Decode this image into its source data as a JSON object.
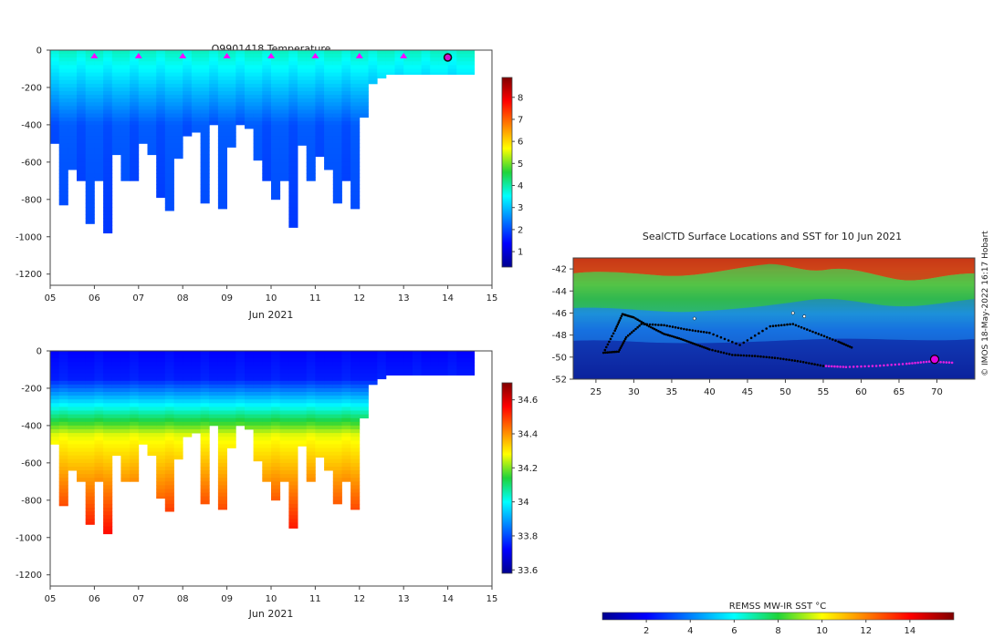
{
  "chart_data": [
    {
      "type": "heatmap",
      "title": "Q9901418  Temperature",
      "xlabel": "Jun 2021",
      "ylabel": "",
      "xlim": [
        5,
        15
      ],
      "ylim": [
        -1260,
        0
      ],
      "x_ticks": [
        "05",
        "06",
        "07",
        "08",
        "09",
        "10",
        "11",
        "12",
        "13",
        "14",
        "15"
      ],
      "y_ticks": [
        0,
        -200,
        -400,
        -600,
        -800,
        -1000,
        -1200
      ],
      "colorbar": {
        "min": 0.3,
        "max": 8.9,
        "ticks": [
          1,
          2,
          3,
          4,
          5,
          6,
          7,
          8
        ]
      },
      "surface_markers_day": [
        6,
        7,
        8,
        9,
        10,
        11,
        12,
        13
      ],
      "current_position_day": 14,
      "profiles_day": [
        5.0,
        5.2,
        5.4,
        5.6,
        5.8,
        6.0,
        6.2,
        6.4,
        6.6,
        6.8,
        7.0,
        7.2,
        7.4,
        7.6,
        7.8,
        8.0,
        8.2,
        8.4,
        8.6,
        8.8,
        9.0,
        9.2,
        9.4,
        9.6,
        9.8,
        10.0,
        10.2,
        10.4,
        10.6,
        10.8,
        11.0,
        11.2,
        11.4,
        11.6,
        11.8,
        12.0,
        12.2,
        12.4,
        12.6,
        12.8,
        13.0,
        13.2,
        13.4,
        13.6,
        13.8,
        14.0,
        14.2,
        14.4
      ],
      "profile_max_depth": [
        -500,
        -830,
        -640,
        -700,
        -930,
        -700,
        -980,
        -560,
        -700,
        -700,
        -500,
        -560,
        -790,
        -860,
        -580,
        -460,
        -440,
        -820,
        -400,
        -850,
        -520,
        -400,
        -420,
        -590,
        -700,
        -800,
        -700,
        -950,
        -510,
        -700,
        -570,
        -640,
        -820,
        -700,
        -850,
        -360,
        -180,
        -150,
        -130,
        -130,
        -130,
        -130,
        -130,
        -130,
        -130,
        -130,
        -130,
        -130
      ]
    },
    {
      "type": "heatmap",
      "title": "",
      "xlabel": "Jun 2021",
      "ylabel": "",
      "xlim": [
        5,
        15
      ],
      "ylim": [
        -1260,
        0
      ],
      "x_ticks": [
        "05",
        "06",
        "07",
        "08",
        "09",
        "10",
        "11",
        "12",
        "13",
        "14",
        "15"
      ],
      "y_ticks": [
        0,
        -200,
        -400,
        -600,
        -800,
        -1000,
        -1200
      ],
      "colorbar": {
        "min": 33.58,
        "max": 34.7,
        "ticks": [
          "33.6",
          "33.8",
          "34",
          "34.2",
          "34.4",
          "34.6"
        ]
      }
    },
    {
      "type": "heatmap",
      "title": "SealCTD Surface Locations and SST for 10 Jun 2021",
      "xlabel": "",
      "ylabel": "",
      "xlim": [
        22,
        75
      ],
      "ylim": [
        -52,
        -41
      ],
      "x_ticks": [
        "25",
        "30",
        "35",
        "40",
        "45",
        "50",
        "55",
        "60",
        "65",
        "70"
      ],
      "y_ticks": [
        "-42",
        "-44",
        "-46",
        "-48",
        "-50",
        "-52"
      ],
      "colorbar": {
        "label": "REMSS MW-IR SST °C",
        "min": 0,
        "max": 16,
        "ticks": [
          "2",
          "4",
          "6",
          "8",
          "10",
          "12",
          "14"
        ]
      },
      "credit": "© IMOS 18-May-2022 16:17 Hobart",
      "current_position": {
        "lon": 69.7,
        "lat": -50.2
      },
      "track_lon": [
        72,
        69,
        66,
        62,
        58,
        55,
        52,
        49,
        46,
        43,
        40,
        38,
        36,
        34,
        32,
        30,
        28.5,
        27.5,
        26,
        28,
        29,
        31,
        34,
        37,
        40,
        44,
        48,
        51,
        54,
        57,
        59
      ],
      "track_lat": [
        -50.5,
        -50.4,
        -50.6,
        -50.8,
        -50.9,
        -50.8,
        -50.4,
        -50.1,
        -49.9,
        -49.8,
        -49.3,
        -48.8,
        -48.3,
        -47.9,
        -47.2,
        -46.4,
        -46.1,
        -47.6,
        -49.6,
        -49.5,
        -48.2,
        -47.0,
        -47.1,
        -47.5,
        -47.8,
        -48.9,
        -47.2,
        -47.0,
        -47.8,
        -48.6,
        -49.2
      ],
      "shelf_lon": [
        38,
        51,
        52.5
      ],
      "shelf_lat": [
        -46.5,
        -46,
        -46.3
      ]
    }
  ]
}
